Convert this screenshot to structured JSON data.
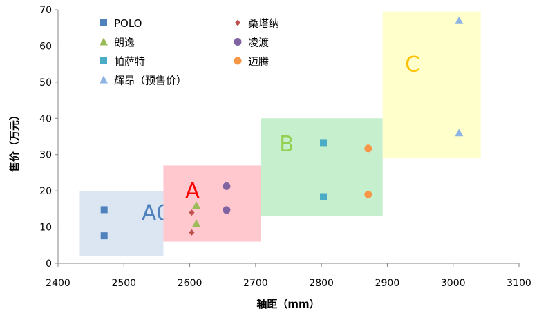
{
  "colors": {
    "POLO": "#4f81bd",
    "sangtana": "#c0504d",
    "langyi": "#9bbb59",
    "lingdu": "#8064a2",
    "pasate": "#4bacc6",
    "maiteng": "#f79646",
    "huiang": "#8eb4e3",
    "regionA0": "#dce6f2",
    "regionA": "#ffc7ce",
    "regionB": "#c6efce",
    "regionC": "#ffffcc",
    "labelA0": "#4f81bd",
    "labelA": "#ff0000",
    "labelB": "#92d050",
    "labelC": "#ffc000"
  },
  "chart_data": {
    "type": "scatter",
    "xlabel": "轴距（mm）",
    "ylabel": "售价（万元）",
    "xlim": [
      2400,
      3100
    ],
    "ylim": [
      0,
      70
    ],
    "xticks": [
      2400,
      2500,
      2600,
      2700,
      2800,
      2900,
      3000,
      3100
    ],
    "yticks": [
      0,
      10,
      20,
      30,
      40,
      50,
      60,
      70
    ],
    "grid": false,
    "legend_position": "top-left, inside plot, two columns",
    "regions": [
      {
        "label": "A0",
        "x": [
          2433,
          2560
        ],
        "y": [
          2,
          20
        ],
        "fill_key": "regionA0",
        "label_key": "labelA0",
        "label_at": [
          2527,
          14
        ]
      },
      {
        "label": "A",
        "x": [
          2560,
          2708
        ],
        "y": [
          6,
          27
        ],
        "fill_key": "regionA",
        "label_key": "labelA",
        "label_at": [
          2593,
          20
        ]
      },
      {
        "label": "B",
        "x": [
          2708,
          2893
        ],
        "y": [
          13,
          40
        ],
        "fill_key": "regionB",
        "label_key": "labelB",
        "label_at": [
          2736,
          33
        ]
      },
      {
        "label": "C",
        "x": [
          2893,
          3042
        ],
        "y": [
          29,
          69.5
        ],
        "fill_key": "regionC",
        "label_key": "labelC",
        "label_at": [
          2927,
          55
        ]
      }
    ],
    "series": [
      {
        "name": "POLO",
        "marker": "square",
        "color_key": "POLO",
        "x": [
          2470,
          2470
        ],
        "y": [
          14.8,
          7.6
        ]
      },
      {
        "name": "桑塔纳",
        "marker": "diamond",
        "color_key": "sangtana",
        "x": [
          2603,
          2603
        ],
        "y": [
          14,
          8.5
        ]
      },
      {
        "name": "朗逸",
        "marker": "triangle",
        "color_key": "langyi",
        "x": [
          2610,
          2610
        ],
        "y": [
          16,
          11
        ]
      },
      {
        "name": "凌渡",
        "marker": "circle",
        "color_key": "lingdu",
        "x": [
          2656,
          2656
        ],
        "y": [
          21.3,
          14.7
        ]
      },
      {
        "name": "帕萨特",
        "marker": "square",
        "color_key": "pasate",
        "x": [
          2803,
          2803
        ],
        "y": [
          33.3,
          18.4
        ]
      },
      {
        "name": "迈腾",
        "marker": "circle",
        "color_key": "maiteng",
        "x": [
          2871,
          2871
        ],
        "y": [
          31.7,
          19
        ]
      },
      {
        "name": "辉昂（预售价）",
        "marker": "triangle",
        "color_key": "huiang",
        "x": [
          3009,
          3009
        ],
        "y": [
          67,
          36
        ]
      }
    ]
  }
}
